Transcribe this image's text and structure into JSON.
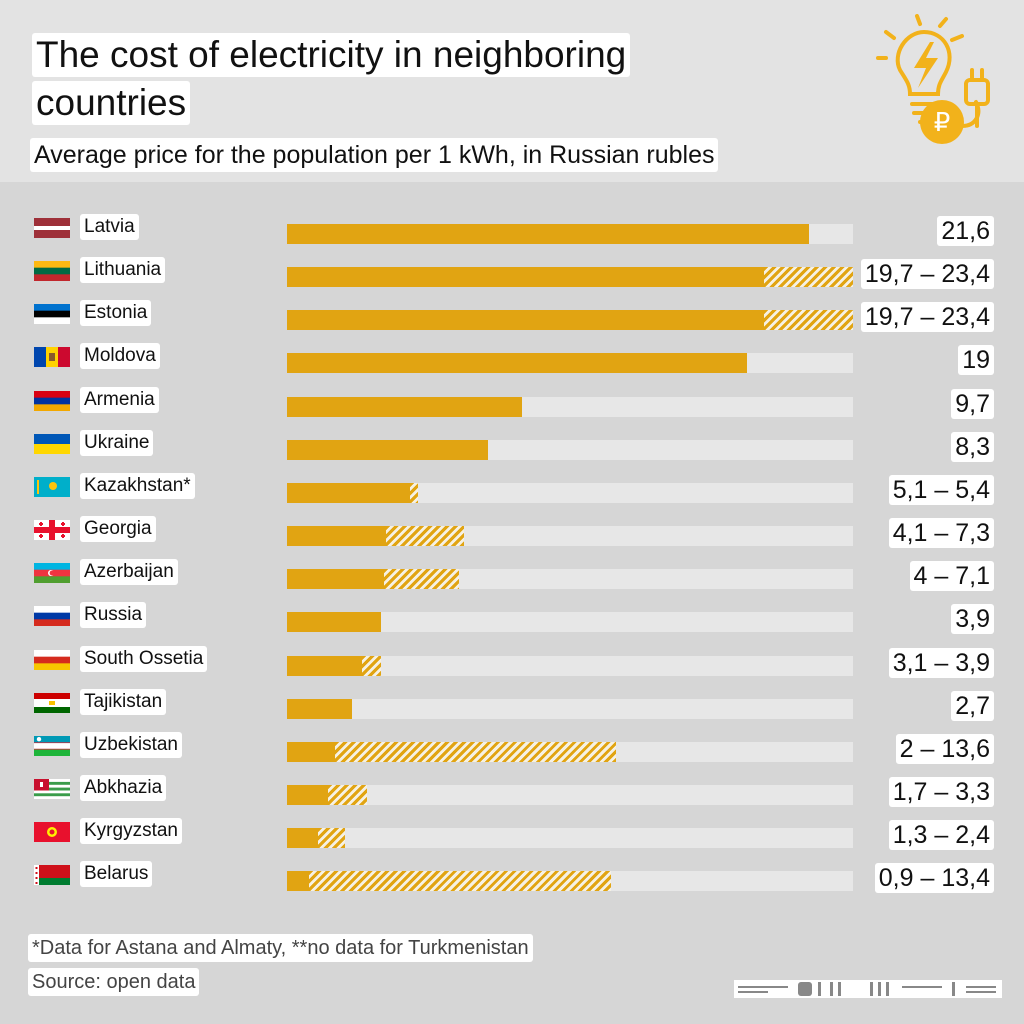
{
  "header": {
    "title_line1": "The cost of electricity in neighboring",
    "title_line2": "countries",
    "subtitle": "Average price for the population per 1 kWh, in Russian rubles"
  },
  "chart_data": {
    "type": "bar",
    "orientation": "horizontal",
    "title": "The cost of electricity in neighboring countries",
    "subtitle": "Average price for the population per 1 kWh, in Russian rubles",
    "xlim": [
      0,
      23.4
    ],
    "categories": [
      "Latvia",
      "Lithuania",
      "Estonia",
      "Moldova",
      "Armenia",
      "Ukraine",
      "Kazakhstan*",
      "Georgia",
      "Azerbaijan",
      "Russia",
      "South Ossetia",
      "Tajikistan",
      "Uzbekistan",
      "Abkhazia",
      "Kyrgyzstan",
      "Belarus"
    ],
    "rows": [
      {
        "country": "Latvia",
        "flag": "latvia-flag",
        "min": 21.6,
        "max": 21.6,
        "label": "21,6"
      },
      {
        "country": "Lithuania",
        "flag": "lithuania-flag",
        "min": 19.7,
        "max": 23.4,
        "label": "19,7 – 23,4"
      },
      {
        "country": "Estonia",
        "flag": "estonia-flag",
        "min": 19.7,
        "max": 23.4,
        "label": "19,7 – 23,4"
      },
      {
        "country": "Moldova",
        "flag": "moldova-flag",
        "min": 19,
        "max": 19,
        "label": "19"
      },
      {
        "country": "Armenia",
        "flag": "armenia-flag",
        "min": 9.7,
        "max": 9.7,
        "label": "9,7"
      },
      {
        "country": "Ukraine",
        "flag": "ukraine-flag",
        "min": 8.3,
        "max": 8.3,
        "label": "8,3"
      },
      {
        "country": "Kazakhstan*",
        "flag": "kazakhstan-flag",
        "min": 5.1,
        "max": 5.4,
        "label": "5,1 – 5,4"
      },
      {
        "country": "Georgia",
        "flag": "georgia-flag",
        "min": 4.1,
        "max": 7.3,
        "label": "4,1 – 7,3"
      },
      {
        "country": "Azerbaijan",
        "flag": "azerbaijan-flag",
        "min": 4,
        "max": 7.1,
        "label": "4 – 7,1"
      },
      {
        "country": "Russia",
        "flag": "russia-flag",
        "min": 3.9,
        "max": 3.9,
        "label": "3,9"
      },
      {
        "country": "South Ossetia",
        "flag": "south-ossetia-flag",
        "min": 3.1,
        "max": 3.9,
        "label": "3,1 – 3,9"
      },
      {
        "country": "Tajikistan",
        "flag": "tajikistan-flag",
        "min": 2.7,
        "max": 2.7,
        "label": "2,7"
      },
      {
        "country": "Uzbekistan",
        "flag": "uzbekistan-flag",
        "min": 2,
        "max": 13.6,
        "label": "2 – 13,6"
      },
      {
        "country": "Abkhazia",
        "flag": "abkhazia-flag",
        "min": 1.7,
        "max": 3.3,
        "label": "1,7 – 3,3"
      },
      {
        "country": "Kyrgyzstan",
        "flag": "kyrgyzstan-flag",
        "min": 1.3,
        "max": 2.4,
        "label": "1,3 – 2,4"
      },
      {
        "country": "Belarus",
        "flag": "belarus-flag",
        "min": 0.9,
        "max": 13.4,
        "label": "0,9 – 13,4"
      }
    ]
  },
  "colors": {
    "bar": "#e1a412",
    "track": "#e7e7e7",
    "background": "#d6d6d6"
  },
  "footer": {
    "footnote": "*Data for Astana and Almaty, **no data for Turkmenistan",
    "source": "Source: open data"
  },
  "logo": {
    "icon": "lightbulb-plug-ruble-icon",
    "symbol": "₽"
  }
}
